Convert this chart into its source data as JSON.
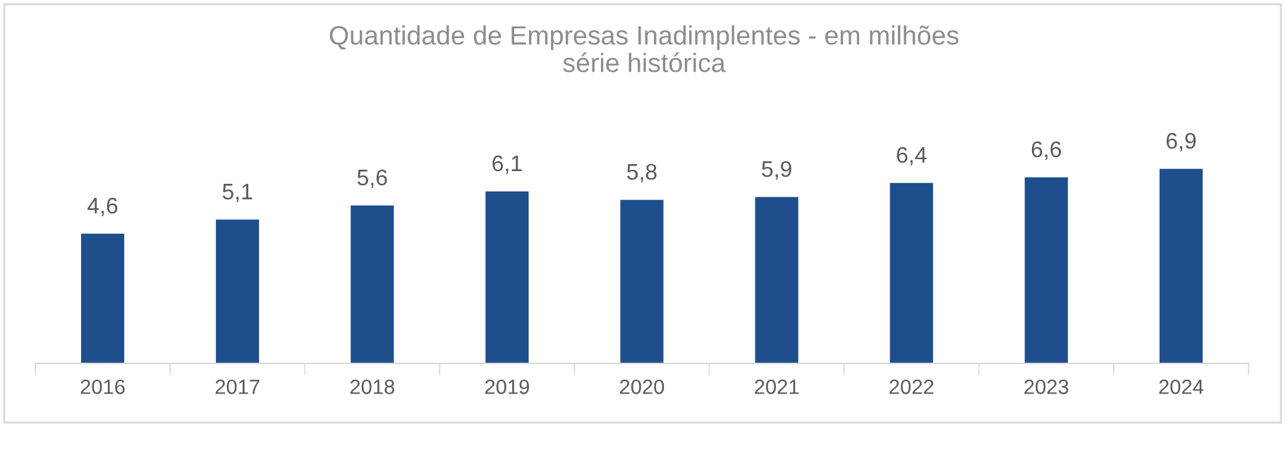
{
  "chart_data": {
    "type": "bar",
    "title": "Quantidade de Empresas Inadimplentes - em milhões\nsérie histórica",
    "categories": [
      "2016",
      "2017",
      "2018",
      "2019",
      "2020",
      "2021",
      "2022",
      "2023",
      "2024"
    ],
    "values": [
      4.6,
      5.1,
      5.6,
      6.1,
      5.8,
      5.9,
      6.4,
      6.6,
      6.9
    ],
    "value_labels": [
      "4,6",
      "5,1",
      "5,6",
      "6,1",
      "5,8",
      "5,9",
      "6,4",
      "6,6",
      "6,9"
    ],
    "color": "#1f4e8c",
    "grid": false
  }
}
